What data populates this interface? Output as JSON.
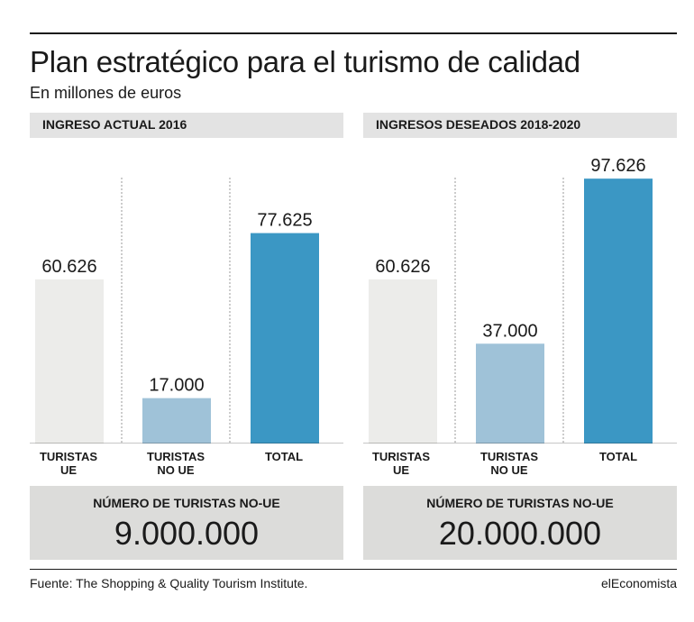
{
  "header": {
    "title": "Plan estratégico para el turismo de calidad",
    "subtitle": "En millones de euros"
  },
  "chart_data": [
    {
      "type": "bar",
      "title": "INGRESO ACTUAL 2016",
      "categories": [
        {
          "line1": "TURISTAS",
          "line2": "UE"
        },
        {
          "line1": "TURISTAS",
          "line2": "NO UE"
        },
        {
          "line1": "TOTAL",
          "line2": ""
        }
      ],
      "values": [
        60626,
        17000,
        77625
      ],
      "value_labels": [
        "60.626",
        "17.000",
        "77.625"
      ],
      "colors": [
        "#ececea",
        "#9fc2d8",
        "#3b97c4"
      ],
      "ylim": [
        0,
        100000
      ],
      "grid": false
    },
    {
      "type": "bar",
      "title": "INGRESOS DESEADOS 2018-2020",
      "categories": [
        {
          "line1": "TURISTAS",
          "line2": "UE"
        },
        {
          "line1": "TURISTAS",
          "line2": "NO UE"
        },
        {
          "line1": "TOTAL",
          "line2": ""
        }
      ],
      "values": [
        60626,
        37000,
        97626
      ],
      "value_labels": [
        "60.626",
        "37.000",
        "97.626"
      ],
      "colors": [
        "#ececea",
        "#9fc2d8",
        "#3b97c4"
      ],
      "ylim": [
        0,
        100000
      ],
      "grid": false
    }
  ],
  "info_boxes": [
    {
      "title": "NÚMERO DE TURISTAS NO-UE",
      "value": "9.000.000"
    },
    {
      "title": "NÚMERO DE TURISTAS NO-UE",
      "value": "20.000.000"
    }
  ],
  "footer": {
    "source": "Fuente:  The Shopping & Quality Tourism Institute.",
    "brand": "elEconomista"
  }
}
